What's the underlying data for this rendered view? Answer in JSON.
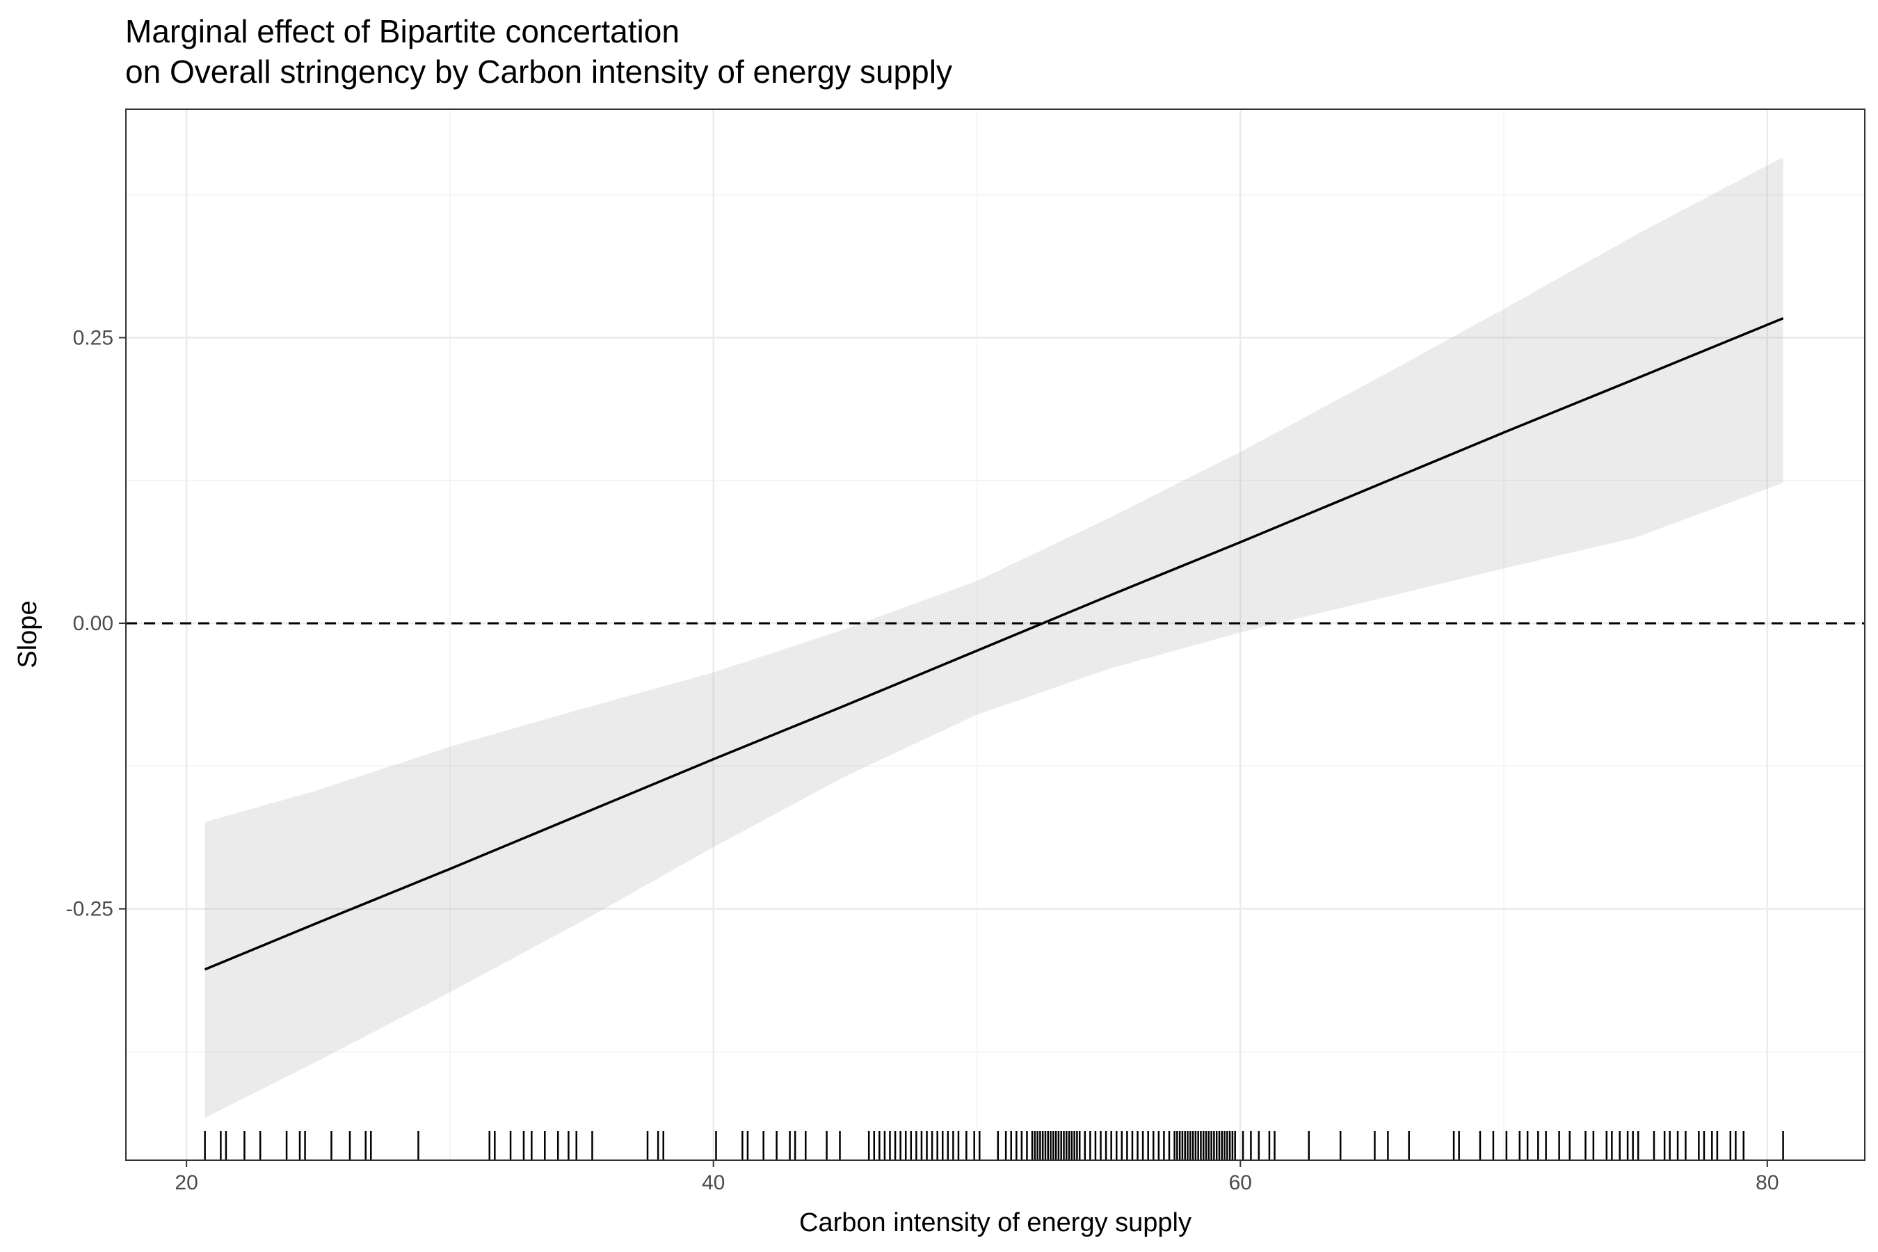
{
  "chart_data": {
    "type": "line",
    "title": "Marginal effect of Bipartite concertation",
    "subtitle": "on Overall stringency by Carbon intensity of energy supply",
    "xlabel": "Carbon intensity of energy supply",
    "ylabel": "Slope",
    "xlim": [
      17.7,
      83.7
    ],
    "ylim": [
      -0.47,
      0.45
    ],
    "x_ticks": [
      20,
      40,
      60,
      80
    ],
    "x_tick_labels": [
      "20",
      "40",
      "60",
      "80"
    ],
    "y_ticks": [
      -0.25,
      0.0,
      0.25
    ],
    "y_tick_labels": [
      "-0.25",
      "0.00",
      "0.25"
    ],
    "grid": true,
    "reference_line": {
      "y": 0.0,
      "style": "dashed"
    },
    "series": [
      {
        "x": [
          20.7,
          25,
          30,
          35,
          40,
          45,
          50,
          55,
          60,
          65,
          70,
          75,
          80.6
        ],
        "y": [
          -0.303,
          -0.262,
          -0.215,
          -0.167,
          -0.119,
          -0.072,
          -0.024,
          0.024,
          0.071,
          0.119,
          0.167,
          0.214,
          0.267
        ],
        "lower": [
          -0.433,
          -0.383,
          -0.323,
          -0.261,
          -0.196,
          -0.134,
          -0.08,
          -0.04,
          -0.008,
          0.02,
          0.048,
          0.075,
          0.123
        ],
        "upper": [
          -0.174,
          -0.146,
          -0.108,
          -0.075,
          -0.043,
          -0.005,
          0.037,
          0.092,
          0.15,
          0.212,
          0.275,
          0.34,
          0.408
        ]
      }
    ],
    "rug_x": [
      20.7,
      21.3,
      21.5,
      22.2,
      22.8,
      23.8,
      24.3,
      24.5,
      25.5,
      26.2,
      26.8,
      27.0,
      28.8,
      31.5,
      31.7,
      32.3,
      32.8,
      33.1,
      33.6,
      34.1,
      34.5,
      34.8,
      35.4,
      37.5,
      37.9,
      38.1,
      40.1,
      41.1,
      41.3,
      41.9,
      42.4,
      42.9,
      43.1,
      43.5,
      44.3,
      44.8,
      45.9,
      46.1,
      46.3,
      46.5,
      46.7,
      46.9,
      47.1,
      47.3,
      47.5,
      47.7,
      47.9,
      48.1,
      48.3,
      48.5,
      48.7,
      48.9,
      49.1,
      49.3,
      49.6,
      49.9,
      50.1,
      50.8,
      51.1,
      51.3,
      51.5,
      51.7,
      51.9,
      52.1,
      52.2,
      52.3,
      52.4,
      52.5,
      52.6,
      52.7,
      52.8,
      52.9,
      53.0,
      53.1,
      53.2,
      53.3,
      53.4,
      53.5,
      53.6,
      53.7,
      53.8,
      53.9,
      54.1,
      54.3,
      54.5,
      54.7,
      54.9,
      55.1,
      55.3,
      55.5,
      55.7,
      55.9,
      56.1,
      56.3,
      56.5,
      56.7,
      56.9,
      57.1,
      57.3,
      57.5,
      57.6,
      57.7,
      57.8,
      57.9,
      58.0,
      58.1,
      58.2,
      58.3,
      58.4,
      58.5,
      58.6,
      58.7,
      58.8,
      58.9,
      59.0,
      59.1,
      59.2,
      59.3,
      59.4,
      59.5,
      59.6,
      59.7,
      59.8,
      60.1,
      60.4,
      60.7,
      61.1,
      61.3,
      62.6,
      63.8,
      65.1,
      65.6,
      66.4,
      68.1,
      68.3,
      69.1,
      69.6,
      70.1,
      70.6,
      70.9,
      71.3,
      71.6,
      72.1,
      72.5,
      73.1,
      73.4,
      73.9,
      74.1,
      74.4,
      74.7,
      74.9,
      75.1,
      75.7,
      76.1,
      76.3,
      76.6,
      76.9,
      77.4,
      77.6,
      77.9,
      78.1,
      78.6,
      78.8,
      79.1,
      80.6
    ]
  }
}
